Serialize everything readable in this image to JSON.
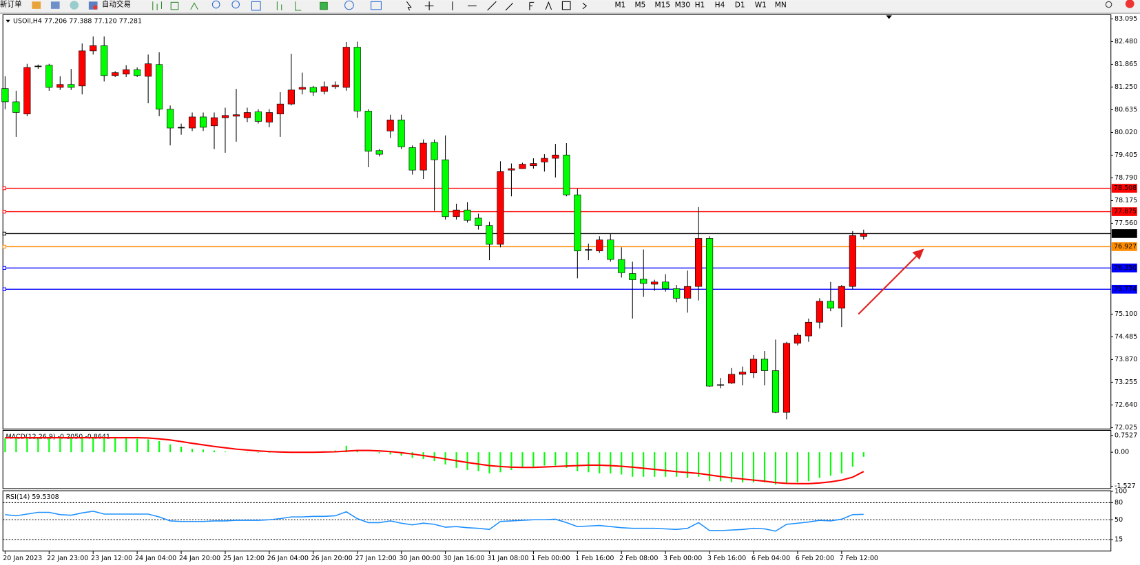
{
  "toolbar": {
    "new_order": "新订单",
    "auto_trading": "自动交易",
    "timeframes": [
      "M1",
      "M5",
      "M15",
      "M30",
      "H1",
      "H4",
      "D1",
      "W1",
      "MN"
    ]
  },
  "chart_data": [
    {
      "type": "candlestick",
      "title": "USOil,H4 77.206 77.388 77.120 77.281",
      "categories": [
        "20 Jan 2023",
        null,
        null,
        null,
        "22 Jan 23:00",
        null,
        null,
        null,
        "23 Jan 12:00",
        null,
        null,
        null,
        "24 Jan 04:00",
        null,
        null,
        null,
        "24 Jan 20:00",
        null,
        null,
        null,
        "25 Jan 12:00",
        null,
        null,
        null,
        "26 Jan 04:00",
        null,
        null,
        null,
        "26 Jan 20:00",
        null,
        null,
        null,
        "27 Jan 12:00",
        null,
        null,
        null,
        "30 Jan 00:00",
        null,
        null,
        null,
        "30 Jan 16:00",
        null,
        null,
        null,
        "31 Jan 08:00",
        null,
        null,
        null,
        "1 Feb 00:00",
        null,
        null,
        null,
        "1 Feb 16:00",
        null,
        null,
        null,
        "2 Feb 08:00",
        null,
        null,
        null,
        "3 Feb 00:00",
        null,
        null,
        null,
        "3 Feb 16:00",
        null,
        null,
        null,
        "6 Feb 04:00",
        null,
        null,
        null,
        "6 Feb 20:00",
        null,
        null,
        null,
        "7 Feb 12:00",
        null,
        null
      ],
      "open": [
        81.21,
        80.85,
        80.52,
        81.8,
        81.84,
        81.24,
        81.32,
        81.28,
        82.23,
        82.37,
        81.56,
        81.6,
        81.72,
        81.54,
        81.86,
        80.65,
        80.14,
        80.14,
        80.44,
        80.2,
        80.42,
        80.46,
        80.42,
        80.58,
        80.3,
        80.52,
        80.79,
        81.19,
        81.24,
        81.13,
        81.26,
        81.24,
        82.33,
        80.6,
        79.53,
        80.06,
        80.36,
        79.61,
        79.0,
        79.75,
        79.28,
        77.74,
        77.92,
        77.7,
        77.5,
        76.99,
        79.0,
        79.04,
        79.12,
        79.22,
        79.32,
        79.41,
        78.33,
        76.83,
        76.81,
        77.11,
        76.58,
        76.2,
        76.05,
        75.91,
        75.97,
        75.79,
        75.53,
        75.85,
        77.15,
        73.17,
        73.23,
        73.47,
        73.51,
        73.88,
        73.57,
        72.44,
        74.31,
        74.51,
        74.88,
        75.45,
        75.26,
        75.85,
        77.206
      ],
      "high": [
        81.54,
        81.15,
        81.88,
        81.86,
        81.88,
        81.54,
        81.74,
        82.43,
        82.62,
        82.62,
        81.68,
        81.84,
        81.78,
        82.13,
        82.19,
        80.75,
        80.26,
        80.56,
        80.56,
        80.56,
        80.69,
        81.2,
        80.69,
        80.65,
        80.65,
        81.11,
        82.15,
        81.64,
        81.28,
        81.4,
        81.4,
        82.47,
        82.48,
        80.65,
        79.57,
        80.5,
        80.5,
        79.67,
        79.83,
        79.83,
        79.94,
        78.09,
        78.13,
        77.82,
        77.6,
        79.24,
        79.18,
        79.2,
        79.32,
        79.43,
        79.71,
        79.73,
        78.49,
        77.01,
        77.21,
        77.27,
        76.91,
        76.52,
        76.85,
        76.03,
        76.18,
        75.89,
        76.28,
        78.0,
        77.21,
        73.37,
        73.64,
        73.68,
        73.99,
        74.1,
        74.41,
        74.35,
        74.59,
        74.98,
        75.53,
        75.97,
        75.89,
        77.35,
        77.388
      ],
      "low": [
        80.65,
        79.9,
        80.46,
        81.74,
        81.15,
        81.17,
        81.17,
        81.05,
        82.13,
        81.4,
        81.52,
        81.52,
        81.52,
        80.81,
        80.46,
        79.67,
        79.96,
        80.06,
        80.06,
        79.57,
        79.47,
        79.77,
        80.3,
        80.26,
        80.16,
        79.9,
        80.75,
        81.05,
        81.01,
        81.05,
        81.2,
        81.15,
        80.42,
        79.08,
        79.37,
        79.87,
        79.57,
        78.88,
        78.76,
        77.9,
        77.66,
        77.66,
        77.58,
        77.39,
        76.56,
        76.91,
        78.29,
        79.04,
        79.04,
        78.96,
        78.8,
        78.29,
        76.07,
        76.56,
        76.76,
        76.52,
        76.09,
        74.98,
        75.57,
        75.73,
        75.71,
        75.42,
        75.14,
        75.47,
        73.13,
        73.09,
        73.21,
        73.17,
        73.37,
        73.17,
        72.42,
        72.25,
        74.25,
        74.35,
        74.71,
        75.18,
        74.75,
        75.77,
        77.12
      ],
      "close": [
        80.85,
        80.56,
        81.78,
        81.82,
        81.24,
        81.32,
        81.24,
        82.23,
        82.37,
        81.56,
        81.64,
        81.72,
        81.56,
        81.88,
        80.65,
        80.14,
        80.16,
        80.44,
        80.16,
        80.42,
        80.48,
        80.5,
        80.56,
        80.32,
        80.56,
        80.79,
        81.17,
        81.24,
        81.11,
        81.26,
        81.3,
        82.33,
        80.6,
        79.51,
        79.43,
        80.36,
        79.63,
        79.0,
        79.73,
        79.28,
        77.74,
        77.92,
        77.64,
        77.5,
        76.99,
        78.96,
        79.04,
        79.16,
        79.18,
        79.32,
        79.41,
        78.33,
        76.81,
        76.85,
        77.11,
        76.58,
        76.22,
        76.03,
        75.93,
        75.97,
        75.79,
        75.53,
        75.85,
        77.15,
        73.15,
        73.19,
        73.47,
        73.53,
        73.88,
        73.57,
        72.44,
        74.31,
        74.53,
        74.88,
        75.45,
        75.26,
        75.85,
        77.23,
        77.281
      ],
      "up_color": "#ff0000",
      "down_color": "#00ff00",
      "ylim": [
        71.99,
        83.21
      ],
      "yticks": [
        83.095,
        {
          "value": 82.48,
          "label": "82.480"
        },
        81.865,
        {
          "value": 81.25,
          "label": "81.250"
        },
        80.635,
        {
          "value": 80.02,
          "label": "80.020"
        },
        79.405,
        {
          "value": 78.79,
          "label": "78.790"
        },
        78.175,
        {
          "value": 77.56,
          "label": "77.560"
        },
        {
          "value": 75.1,
          "label": "75.100"
        },
        74.485,
        {
          "value": 73.87,
          "label": "73.870"
        },
        73.255,
        {
          "value": 72.64,
          "label": "72.640"
        },
        72.025
      ],
      "levels": [
        {
          "value": 78.508,
          "color": "#ff0000"
        },
        {
          "value": 77.875,
          "color": "#ff0000"
        },
        {
          "value": 77.281,
          "color": "#000000"
        },
        {
          "value": 76.927,
          "color": "#ff8c00"
        },
        {
          "value": {
            "value": 76.35,
            "label": "76.350"
          },
          "color": "#0000ff"
        },
        {
          "value": 75.774,
          "color": "#0000ff"
        }
      ]
    },
    {
      "type": "macd",
      "title": "MACD(12,26,9) -0.2050 -0.8641",
      "series": [
        {
          "color": "#00ff00",
          "values": [
            0.62,
            0.62,
            0.62,
            0.62,
            0.62,
            0.62,
            0.62,
            0.62,
            0.62,
            0.62,
            0.62,
            0.62,
            0.6,
            0.58,
            0.5,
            0.35,
            0.25,
            0.15,
            0.12,
            0.08,
            0.03,
            0.0,
            -0.01,
            -0.02,
            -0.02,
            -0.01,
            0.0,
            0.02,
            0.03,
            0.05,
            0.08,
            0.29,
            0.1,
            0.0,
            -0.05,
            -0.1,
            -0.15,
            -0.25,
            -0.3,
            -0.4,
            -0.55,
            -0.7,
            -0.8,
            -0.85,
            -0.95,
            -0.9,
            -0.8,
            -0.7,
            -0.65,
            -0.6,
            -0.6,
            -0.7,
            -0.85,
            -0.9,
            -0.95,
            -0.95,
            -1.0,
            -1.1,
            -1.1,
            -1.1,
            -1.1,
            -1.1,
            -1.15,
            -1.1,
            -1.3,
            -1.3,
            -1.35,
            -1.35,
            -1.35,
            -1.35,
            -1.45,
            -1.4,
            -1.35,
            -1.3,
            -1.15,
            -1.05,
            -0.95,
            -0.65,
            -0.205
          ]
        },
        {
          "color": "#ff0000",
          "values": [
            0.65,
            0.65,
            0.65,
            0.65,
            0.65,
            0.65,
            0.65,
            0.65,
            0.65,
            0.65,
            0.65,
            0.65,
            0.65,
            0.64,
            0.6,
            0.55,
            0.48,
            0.4,
            0.33,
            0.26,
            0.2,
            0.14,
            0.1,
            0.06,
            0.03,
            0.01,
            0.0,
            0.0,
            0.0,
            0.01,
            0.02,
            0.05,
            0.08,
            0.08,
            0.06,
            0.03,
            -0.02,
            -0.08,
            -0.15,
            -0.22,
            -0.3,
            -0.38,
            -0.46,
            -0.53,
            -0.6,
            -0.64,
            -0.67,
            -0.68,
            -0.68,
            -0.66,
            -0.64,
            -0.62,
            -0.6,
            -0.58,
            -0.58,
            -0.6,
            -0.63,
            -0.67,
            -0.72,
            -0.77,
            -0.82,
            -0.87,
            -0.91,
            -0.95,
            -1.02,
            -1.09,
            -1.15,
            -1.2,
            -1.25,
            -1.3,
            -1.36,
            -1.4,
            -1.41,
            -1.41,
            -1.38,
            -1.33,
            -1.25,
            -1.12,
            -0.8641
          ]
        }
      ],
      "ylim": [
        -1.63,
        0.98
      ],
      "yticks": [
        0.7527,
        {
          "value": 0,
          "label": "0.00"
        },
        -1.527
      ]
    },
    {
      "type": "rsi",
      "title": "RSI(14) 59.5308",
      "series": [
        {
          "color": "#1e90ff",
          "values": [
            59,
            57,
            60,
            63,
            63,
            59,
            58,
            62,
            65,
            60,
            60,
            60,
            60,
            60,
            55,
            48,
            47,
            47,
            47,
            48,
            48,
            49,
            49,
            49,
            50,
            52,
            55,
            55,
            56,
            56,
            57,
            64,
            52,
            45,
            45,
            48,
            44,
            41,
            44,
            42,
            37,
            38,
            36,
            35,
            33,
            47,
            48,
            49,
            50,
            50,
            51,
            45,
            38,
            39,
            40,
            38,
            36,
            35,
            35,
            35,
            34,
            33,
            35,
            45,
            31,
            31,
            32,
            33,
            35,
            34,
            30,
            42,
            44,
            46,
            49,
            48,
            51,
            59,
            59.5308
          ]
        }
      ],
      "ylim": [
        -5,
        101
      ],
      "yticks": [
        100,
        80,
        50,
        15
      ],
      "levels": [
        80,
        50,
        15
      ]
    }
  ]
}
